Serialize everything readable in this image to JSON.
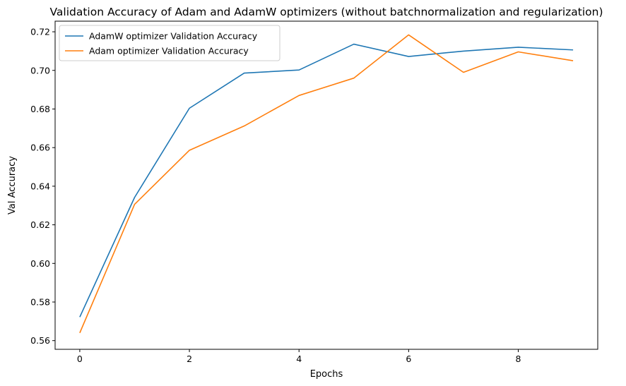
{
  "chart_data": {
    "type": "line",
    "title": "Validation Accuracy of Adam and AdamW optimizers (without batchnormalization and regularization)",
    "xlabel": "Epochs",
    "ylabel": "Val Accuracy",
    "x": [
      0,
      1,
      2,
      3,
      4,
      5,
      6,
      7,
      8,
      9
    ],
    "xlim": [
      -0.45,
      9.45
    ],
    "ylim": [
      0.5555,
      0.7255
    ],
    "xticks": [
      0,
      2,
      4,
      6,
      8
    ],
    "xtick_labels": [
      "0",
      "2",
      "4",
      "6",
      "8"
    ],
    "yticks": [
      0.56,
      0.58,
      0.6,
      0.62,
      0.64,
      0.66,
      0.68,
      0.7,
      0.72
    ],
    "ytick_labels": [
      "0.56",
      "0.58",
      "0.60",
      "0.62",
      "0.64",
      "0.66",
      "0.68",
      "0.70",
      "0.72"
    ],
    "grid": false,
    "legend_position": "top-left",
    "series": [
      {
        "name": "AdamW optimizer Validation Accuracy",
        "color": "#1f77b4",
        "values": [
          0.5722,
          0.6342,
          0.6804,
          0.6986,
          0.7002,
          0.7136,
          0.7072,
          0.71,
          0.712,
          0.7106
        ]
      },
      {
        "name": "Adam optimizer Validation Accuracy",
        "color": "#ff7f0e",
        "values": [
          0.564,
          0.6306,
          0.6586,
          0.6712,
          0.687,
          0.696,
          0.7184,
          0.699,
          0.7096,
          0.705
        ]
      }
    ]
  }
}
